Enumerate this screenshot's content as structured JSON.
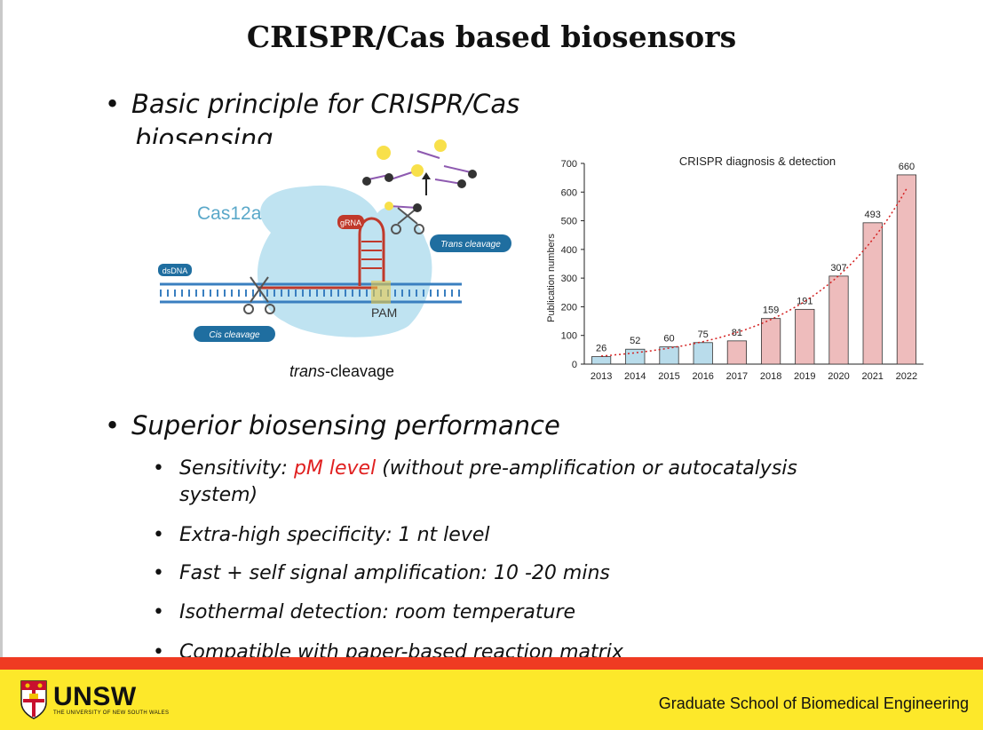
{
  "slide": {
    "title": "CRISPR/Cas based biosensors",
    "bullet1": "Basic principle for CRISPR/Cas",
    "bullet1_cont": "biosensing",
    "bullet2": "Superior biosensing performance",
    "sub": {
      "s1_prefix": "Sensitivity: ",
      "s1_highlight": "pM level",
      "s1_suffix": " (without pre-amplification or autocatalysis",
      "s1_line2": "system)",
      "s2": "Extra-high specificity: 1 nt level",
      "s3": "Fast + self signal amplification: 10 -20 mins",
      "s4": "Isothermal detection: room temperature",
      "s5": "Compatible with paper-based reaction matrix"
    },
    "highlight_color": "#e02020",
    "bullet_glyph": "•"
  },
  "diagram": {
    "cas_label": "Cas12a",
    "grna_label": "gRNA",
    "dsdna_label": "dsDNA",
    "pam_label": "PAM",
    "trans_badge": "Trans cleavage",
    "cis_badge": "Cis cleavage",
    "caption_italic": "trans",
    "caption_rest": "-cleavage",
    "cas_color": "#bfe3f1",
    "badge_color": "#1f6ea0",
    "grna_color": "#c0392b"
  },
  "chart_data": {
    "type": "bar",
    "title": "CRISPR diagnosis & detection",
    "xlabel": "",
    "ylabel": "Publication numbers",
    "categories": [
      "2013",
      "2014",
      "2015",
      "2016",
      "2017",
      "2018",
      "2019",
      "2020",
      "2021",
      "2022"
    ],
    "values": [
      26,
      52,
      60,
      75,
      81,
      159,
      191,
      307,
      493,
      660
    ],
    "bar_colors": [
      "#b9dceb",
      "#b9dceb",
      "#b9dceb",
      "#b9dceb",
      "#eebcbc",
      "#eebcbc",
      "#eebcbc",
      "#eebcbc",
      "#eebcbc",
      "#eebcbc"
    ],
    "ylim": [
      0,
      700
    ],
    "yticks": [
      0,
      100,
      200,
      300,
      400,
      500,
      600,
      700
    ],
    "trendline": "exponential, red dotted",
    "trend_color": "#d42020",
    "grid": false,
    "legend": "none"
  },
  "footer": {
    "logo_word": "UNSW",
    "logo_sub": "THE UNIVERSITY OF NEW SOUTH WALES",
    "department": "Graduate School of Biomedical Engineering",
    "red": "#ef3b22",
    "yellow": "#fde82a"
  }
}
